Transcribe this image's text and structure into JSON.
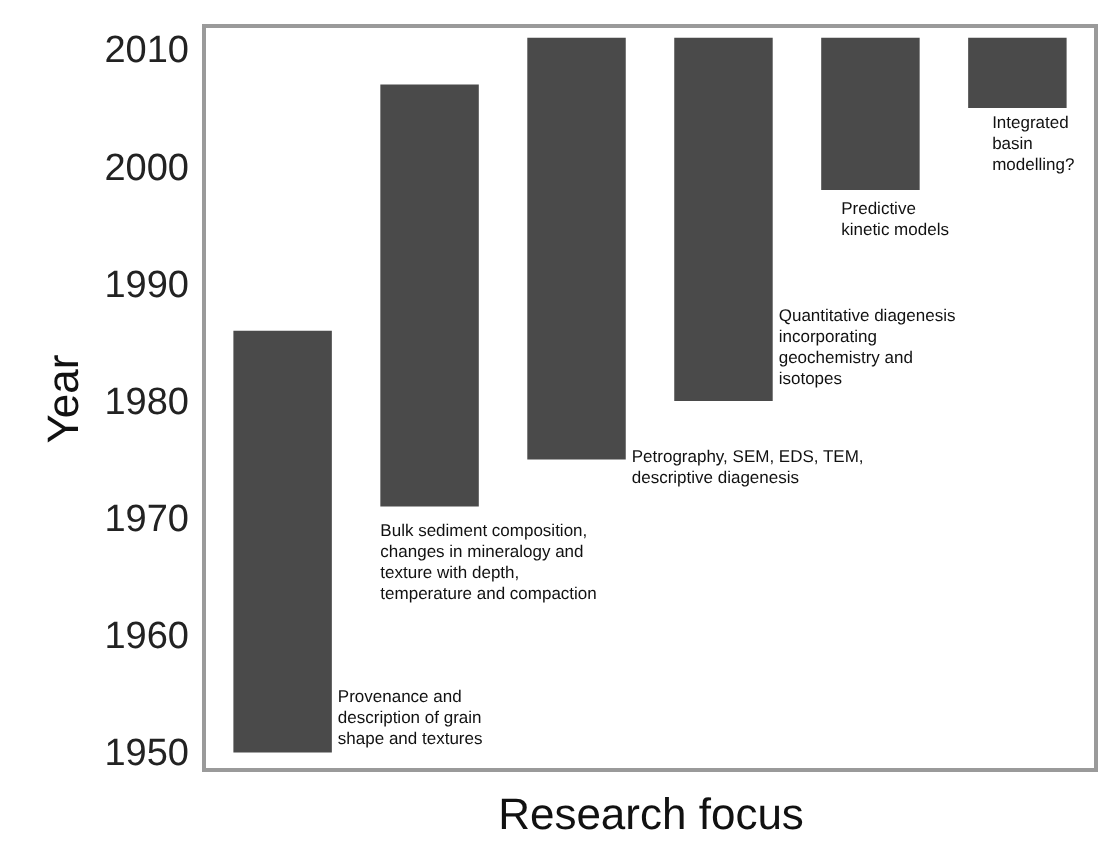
{
  "chart_data": {
    "type": "bar",
    "xlabel": "Research focus",
    "ylabel": "Year",
    "categories": [
      null,
      null,
      null,
      null,
      null,
      null
    ],
    "base": [
      1950,
      1971,
      1975,
      1980,
      1998,
      2005
    ],
    "values": [
      36,
      36,
      36,
      31,
      13,
      6
    ],
    "color": "#4a4a4a",
    "ylim": [
      1948.5,
      2012
    ],
    "yticks": [
      1950,
      1960,
      1970,
      1980,
      1990,
      2000,
      2010
    ],
    "tick_labels": "y",
    "grid": false,
    "annotations": [
      "Provenance and\ndescription of grain\nshape and textures",
      "Bulk sediment composition,\nchanges in mineralogy and\ntexture with depth,\ntemperature and compaction",
      "Petrography, SEM, EDS, TEM,\ndescriptive diagenesis",
      "Quantitative diagenesis\nincorporating\ngeochemistry and\nisotopes",
      "Predictive\nkinetic models",
      "Integrated\nbasin\nmodelling?"
    ]
  }
}
